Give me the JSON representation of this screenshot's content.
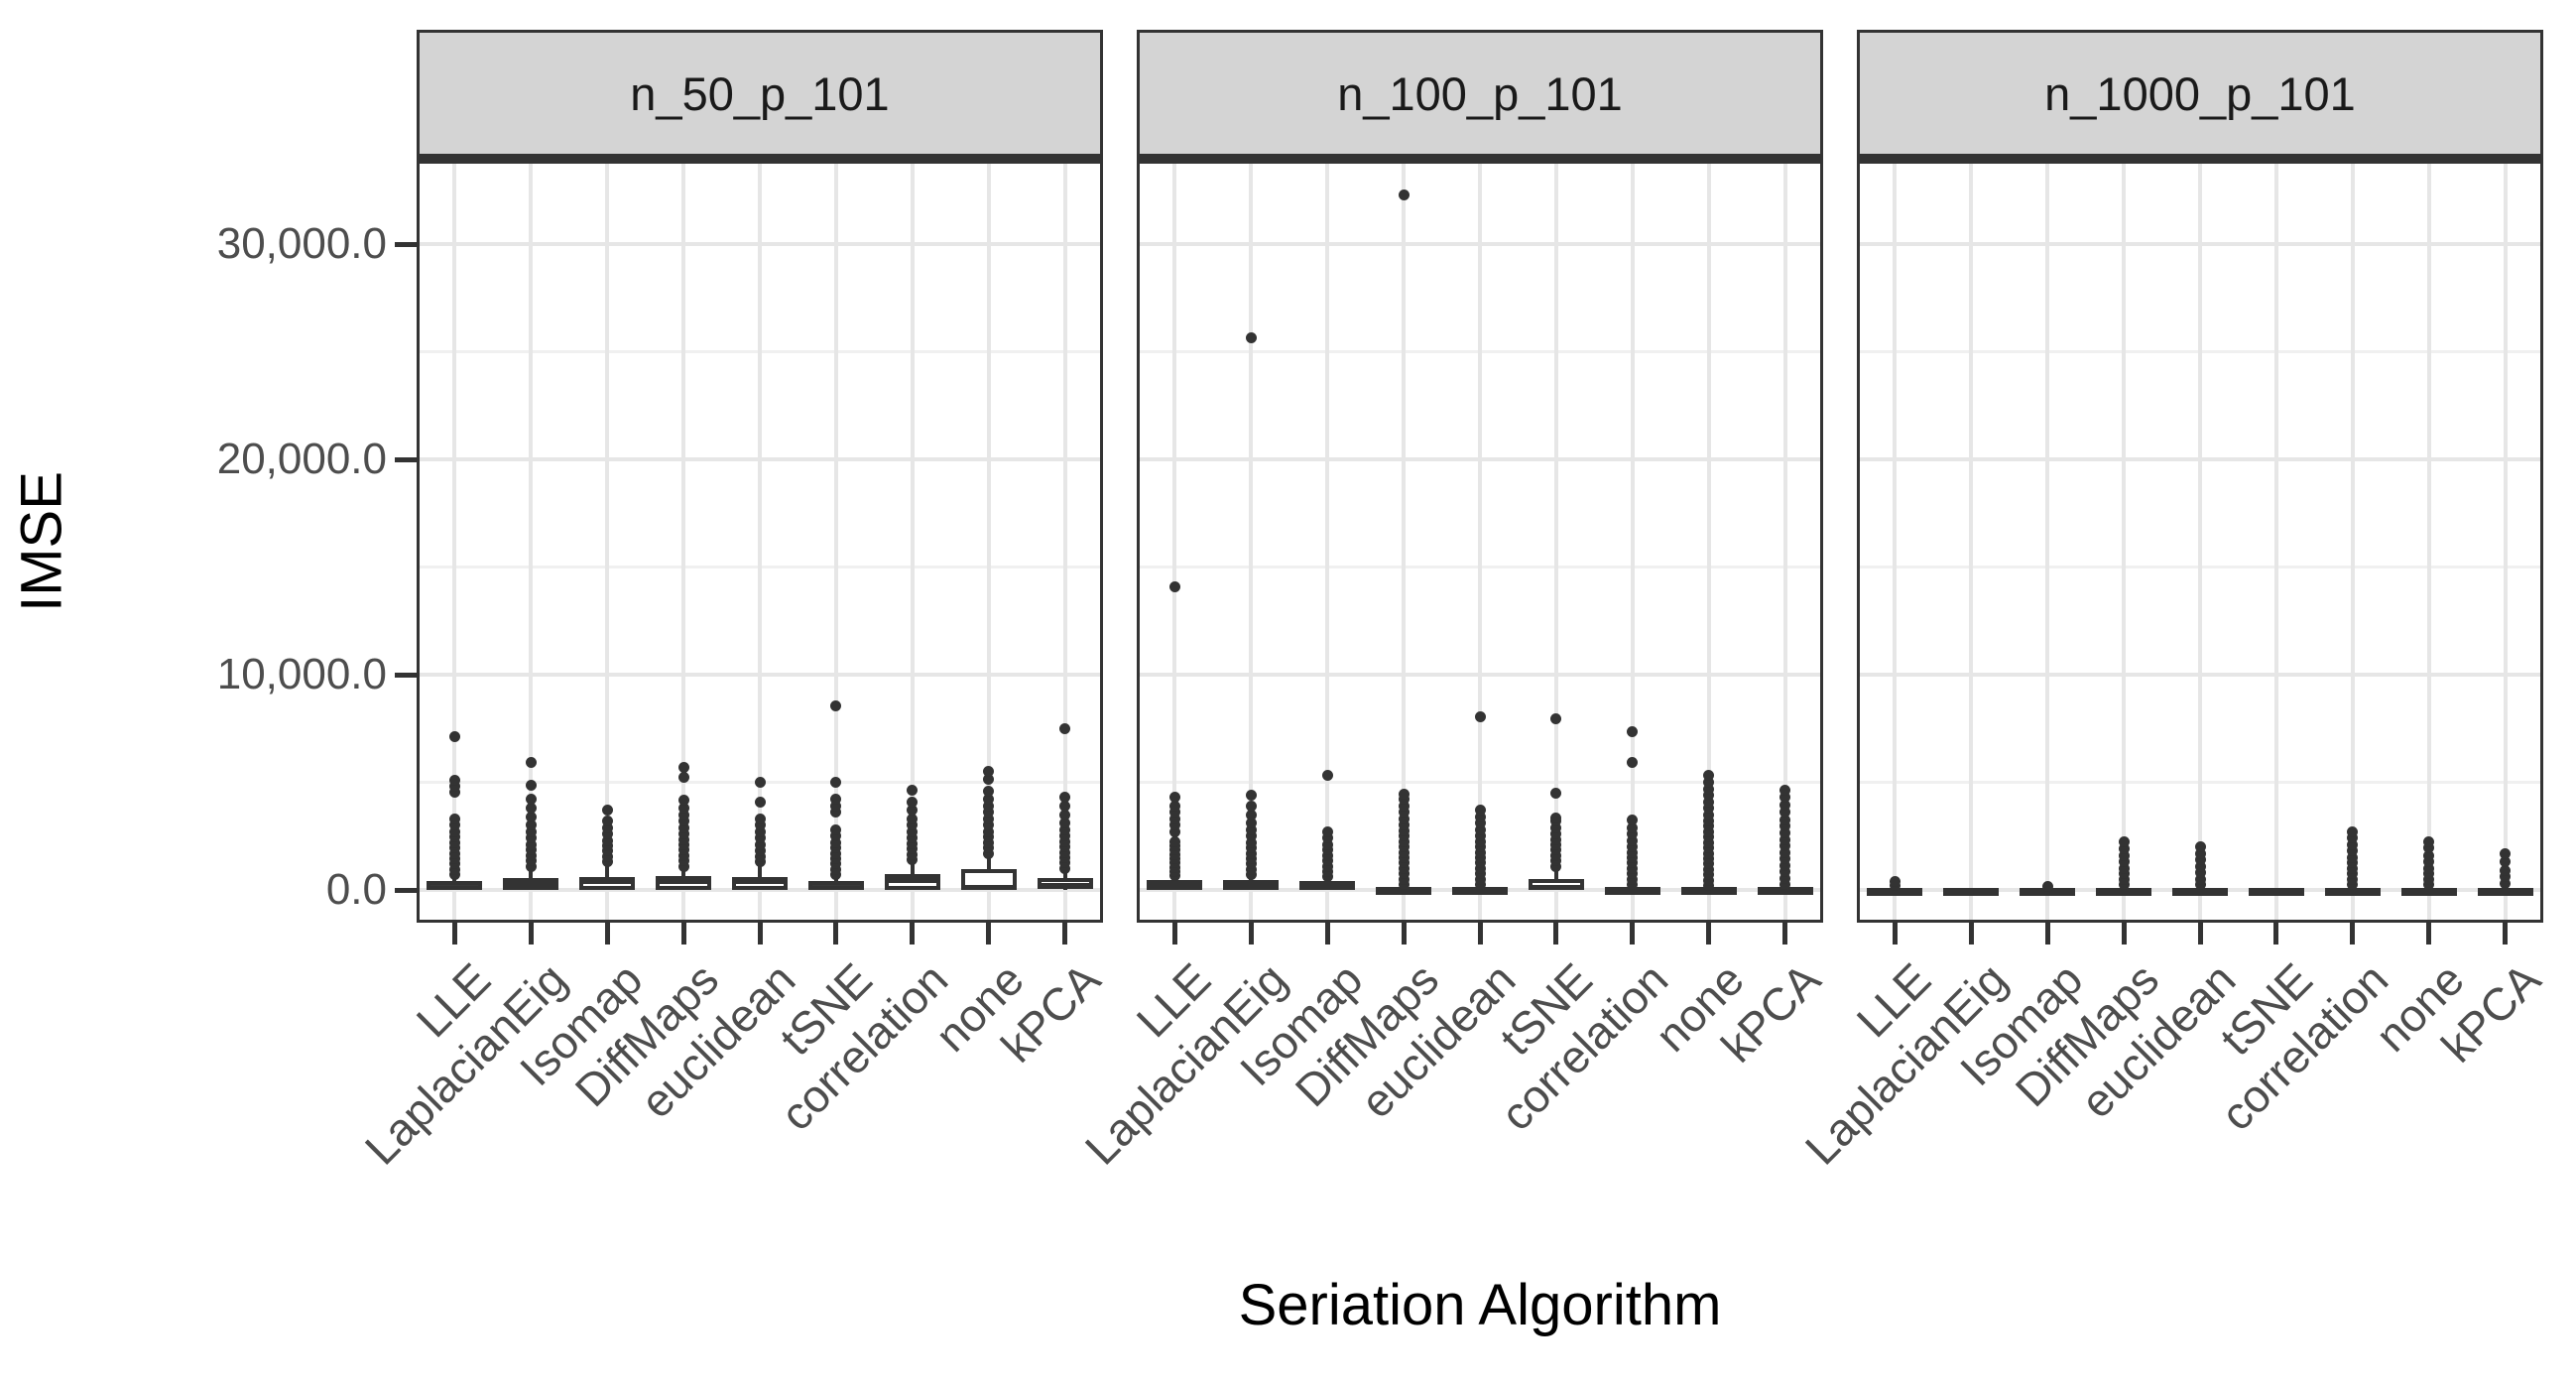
{
  "chart_data": {
    "type": "boxplot",
    "title": "",
    "xlabel": "Seriation Algorithm",
    "ylabel": "IMSE",
    "categories": [
      "LLE",
      "LaplacianEig",
      "Isomap",
      "DiffMaps",
      "euclidean",
      "tSNE",
      "correlation",
      "none",
      "kPCA"
    ],
    "y_ticks": [
      {
        "value": 0,
        "label": "0.0"
      },
      {
        "value": 10000,
        "label": "10,000.0"
      },
      {
        "value": 20000,
        "label": "20,000.0"
      },
      {
        "value": 30000,
        "label": "30,000.0"
      }
    ],
    "y_minor_breaks": [
      5000,
      15000,
      25000
    ],
    "ylim": [
      -1520,
      33870
    ],
    "grid": true,
    "legend": "none",
    "facets": [
      {
        "label": "n_50_p_101",
        "boxes": [
          {
            "category": "LLE",
            "fill": "dark",
            "q1": 0,
            "median": 200,
            "q3": 430,
            "whisker_low": 0,
            "whisker_high": 550,
            "outliers": [
              700,
              950,
              1200,
              1450,
              1700,
              1950,
              2200,
              2450,
              2700,
              3000,
              3300,
              4550,
              4800,
              5100,
              7100
            ]
          },
          {
            "category": "LaplacianEig",
            "fill": "white",
            "q1": 0,
            "median": 300,
            "q3": 550,
            "whisker_low": 0,
            "whisker_high": 950,
            "outliers": [
              1100,
              1350,
              1600,
              1850,
              2100,
              2400,
              2700,
              3000,
              3400,
              3800,
              4200,
              4880,
              5940
            ]
          },
          {
            "category": "Isomap",
            "fill": "white",
            "q1": 0,
            "median": 380,
            "q3": 620,
            "whisker_low": 0,
            "whisker_high": 1100,
            "outliers": [
              1300,
              1550,
              1800,
              2050,
              2300,
              2600,
              2900,
              3200,
              3700
            ]
          },
          {
            "category": "DiffMaps",
            "fill": "white",
            "q1": 0,
            "median": 380,
            "q3": 650,
            "whisker_low": 0,
            "whisker_high": 950,
            "outliers": [
              1100,
              1350,
              1600,
              1850,
              2100,
              2350,
              2600,
              2900,
              3200,
              3500,
              3800,
              4190,
              5210,
              5670
            ]
          },
          {
            "category": "euclidean",
            "fill": "white",
            "q1": 0,
            "median": 380,
            "q3": 600,
            "whisker_low": 0,
            "whisker_high": 1100,
            "outliers": [
              1300,
              1550,
              1800,
              2100,
              2400,
              2700,
              3000,
              3300,
              4100,
              5020
            ]
          },
          {
            "category": "tSNE",
            "fill": "dark",
            "q1": 0,
            "median": 180,
            "q3": 420,
            "whisker_low": 0,
            "whisker_high": 550,
            "outliers": [
              700,
              950,
              1200,
              1450,
              1700,
              1950,
              2200,
              2500,
              2800,
              3600,
              3900,
              4200,
              5020,
              8530
            ]
          },
          {
            "category": "correlation",
            "fill": "white",
            "q1": 0,
            "median": 450,
            "q3": 740,
            "whisker_low": 0,
            "whisker_high": 1200,
            "outliers": [
              1400,
              1650,
              1900,
              2150,
              2400,
              2700,
              3000,
              3300,
              3700,
              4100,
              4650
            ]
          },
          {
            "category": "none",
            "fill": "white",
            "q1": 0,
            "median": 120,
            "q3": 970,
            "whisker_low": 0,
            "whisker_high": 1500,
            "outliers": [
              1700,
              1950,
              2200,
              2450,
              2700,
              3000,
              3300,
              3600,
              3900,
              4200,
              4600,
              5120,
              5490
            ]
          },
          {
            "category": "kPCA",
            "fill": "white",
            "q1": 30,
            "median": 230,
            "q3": 550,
            "whisker_low": 0,
            "whisker_high": 900,
            "outliers": [
              1000,
              1250,
              1500,
              1750,
              2000,
              2250,
              2500,
              2800,
              3100,
              3500,
              3900,
              4300,
              7510
            ]
          }
        ]
      },
      {
        "label": "n_100_p_101",
        "boxes": [
          {
            "category": "LLE",
            "fill": "white",
            "q1": 0,
            "median": 220,
            "q3": 460,
            "whisker_low": 0,
            "whisker_high": 600,
            "outliers": [
              650,
              850,
              1050,
              1250,
              1450,
              1650,
              1850,
              2050,
              2250,
              2700,
              3000,
              3300,
              3600,
              3900,
              4300,
              14100
            ]
          },
          {
            "category": "LaplacianEig",
            "fill": "white",
            "q1": 0,
            "median": 200,
            "q3": 460,
            "whisker_low": 0,
            "whisker_high": 650,
            "outliers": [
              700,
              950,
              1200,
              1450,
              1700,
              1950,
              2200,
              2500,
              2800,
              3100,
              3500,
              3900,
              4400,
              25650
            ]
          },
          {
            "category": "Isomap",
            "fill": "white",
            "q1": 0,
            "median": 180,
            "q3": 420,
            "whisker_low": 0,
            "whisker_high": 580,
            "outliers": [
              600,
              850,
              1100,
              1350,
              1600,
              1850,
              2100,
              2400,
              2700,
              5300
            ]
          },
          {
            "category": "DiffMaps",
            "fill": "dark",
            "q1": 0,
            "median": 60,
            "q3": 130,
            "whisker_low": 0,
            "whisker_high": 130,
            "outliers": [
              250,
              500,
              750,
              1000,
              1250,
              1500,
              1750,
              2000,
              2250,
              2500,
              2750,
              3000,
              3300,
              3600,
              3900,
              4200,
              4450,
              32300
            ]
          },
          {
            "category": "euclidean",
            "fill": "dark",
            "q1": 0,
            "median": 60,
            "q3": 130,
            "whisker_low": 0,
            "whisker_high": 130,
            "outliers": [
              250,
              500,
              750,
              1000,
              1250,
              1500,
              1750,
              2000,
              2250,
              2500,
              2800,
              3100,
              3400,
              3700,
              8050
            ]
          },
          {
            "category": "tSNE",
            "fill": "white",
            "q1": 0,
            "median": 100,
            "q3": 500,
            "whisker_low": 0,
            "whisker_high": 900,
            "outliers": [
              1100,
              1350,
              1600,
              1850,
              2100,
              2350,
              2600,
              2900,
              3200,
              3320,
              4500,
              7970
            ]
          },
          {
            "category": "correlation",
            "fill": "dark",
            "q1": 0,
            "median": 70,
            "q3": 150,
            "whisker_low": 0,
            "whisker_high": 150,
            "outliers": [
              250,
              500,
              750,
              1000,
              1250,
              1500,
              1750,
              2000,
              2300,
              2600,
              2900,
              3230,
              5900,
              7370
            ]
          },
          {
            "category": "none",
            "fill": "dark",
            "q1": 0,
            "median": 60,
            "q3": 130,
            "whisker_low": 0,
            "whisker_high": 130,
            "outliers": [
              200,
              450,
              700,
              950,
              1200,
              1450,
              1700,
              1950,
              2200,
              2450,
              2700,
              2950,
              3200,
              3500,
              3800,
              4100,
              4400,
              4700,
              5000,
              5300
            ]
          },
          {
            "category": "kPCA",
            "fill": "dark",
            "q1": 0,
            "median": 60,
            "q3": 130,
            "whisker_low": 0,
            "whisker_high": 130,
            "outliers": [
              250,
              550,
              850,
              1150,
              1450,
              1750,
              2050,
              2350,
              2650,
              2950,
              3250,
              3600,
              3950,
              4300,
              4650
            ]
          }
        ]
      },
      {
        "label": "n_1000_p_101",
        "boxes": [
          {
            "category": "LLE",
            "fill": "dark",
            "q1": 0,
            "median": 50,
            "q3": 110,
            "whisker_low": 0,
            "whisker_high": 110,
            "outliers": [
              200,
              400
            ]
          },
          {
            "category": "LaplacianEig",
            "fill": "dark",
            "q1": 0,
            "median": 50,
            "q3": 110,
            "whisker_low": 0,
            "whisker_high": 110,
            "outliers": []
          },
          {
            "category": "Isomap",
            "fill": "dark",
            "q1": 0,
            "median": 50,
            "q3": 110,
            "whisker_low": 0,
            "whisker_high": 110,
            "outliers": [
              150
            ]
          },
          {
            "category": "DiffMaps",
            "fill": "dark",
            "q1": 0,
            "median": 50,
            "q3": 110,
            "whisker_low": 0,
            "whisker_high": 110,
            "outliers": [
              250,
              500,
              750,
              1000,
              1300,
              1600,
              1900,
              2250
            ]
          },
          {
            "category": "euclidean",
            "fill": "dark",
            "q1": 0,
            "median": 50,
            "q3": 110,
            "whisker_low": 0,
            "whisker_high": 110,
            "outliers": [
              250,
              500,
              800,
              1100,
              1400,
              1700,
              2000
            ]
          },
          {
            "category": "tSNE",
            "fill": "dark",
            "q1": 0,
            "median": 50,
            "q3": 110,
            "whisker_low": 0,
            "whisker_high": 110,
            "outliers": []
          },
          {
            "category": "correlation",
            "fill": "dark",
            "q1": 0,
            "median": 50,
            "q3": 110,
            "whisker_low": 0,
            "whisker_high": 110,
            "outliers": [
              250,
              500,
              750,
              1000,
              1250,
              1500,
              1800,
              2100,
              2400,
              2700
            ]
          },
          {
            "category": "none",
            "fill": "dark",
            "q1": 0,
            "median": 50,
            "q3": 110,
            "whisker_low": 0,
            "whisker_high": 110,
            "outliers": [
              250,
              500,
              750,
              1000,
              1300,
              1600,
              1950,
              2250
            ]
          },
          {
            "category": "kPCA",
            "fill": "dark",
            "q1": 0,
            "median": 50,
            "q3": 110,
            "whisker_low": 0,
            "whisker_high": 110,
            "outliers": [
              300,
              600,
              900,
              1300,
              1700
            ]
          }
        ]
      }
    ]
  },
  "colors": {
    "stroke": "#333333",
    "box_dark_fill": "#383838",
    "box_white_fill": "#FFFFFF",
    "grid_major": "#E6E6E6",
    "grid_minor": "#F0F0F0",
    "strip_bg": "#D4D4D4",
    "panel_bg": "#FFFFFF",
    "tick_text": "#4D4D4D",
    "title_text": "#000000"
  }
}
